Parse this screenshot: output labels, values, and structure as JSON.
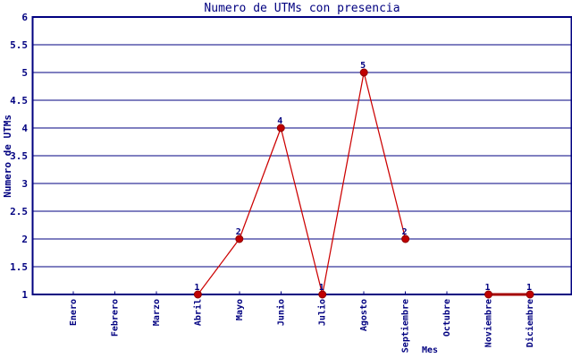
{
  "chart_data": {
    "type": "line",
    "title": "Numero de UTMs con presencia",
    "xlabel": "Mes",
    "ylabel": "Numero de UTMs",
    "categories": [
      "Enero",
      "Febrero",
      "Marzo",
      "Abril",
      "Mayo",
      "Junio",
      "Julio",
      "Agosto",
      "Septiembre",
      "Octubre",
      "Noviembre",
      "Diciembre"
    ],
    "series": [
      {
        "values": [
          null,
          null,
          null,
          1,
          2,
          4,
          1,
          5,
          2,
          null,
          1,
          1
        ]
      }
    ],
    "point_labels": [
      "",
      "",
      "",
      "1",
      "2",
      "4",
      "1",
      "5",
      "2",
      "",
      "1",
      "1"
    ],
    "ylim": [
      1,
      6
    ],
    "ytick_step": 0.5,
    "ytick_labels": [
      "6",
      "5.5",
      "5",
      "4.5",
      "4",
      "3.5",
      "3",
      "2.5",
      "2",
      "1.5",
      "1"
    ],
    "grid": true,
    "legend": null,
    "colors": {
      "background": "#FFFFFF",
      "axis_and_text": "#000080",
      "line": "#CC0000",
      "marker_fill": "#C00000",
      "marker_edge": "#8B0000",
      "baseline_segment": "#A40000"
    }
  }
}
